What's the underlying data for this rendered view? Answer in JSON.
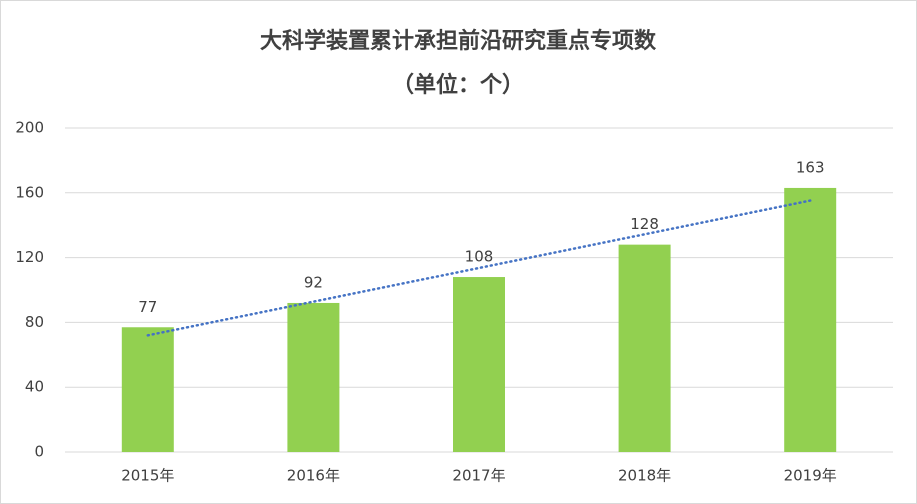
{
  "chart_data": {
    "type": "bar",
    "title": "大科学装置累计承担前沿研究重点专项数",
    "subtitle": "（单位：个）",
    "categories": [
      "2015年",
      "2016年",
      "2017年",
      "2018年",
      "2019年"
    ],
    "values": [
      77,
      92,
      108,
      128,
      163
    ],
    "color": "#92d050",
    "ylim": [
      0,
      200
    ],
    "yticks": [
      0,
      40,
      80,
      120,
      160,
      200
    ],
    "grid": true,
    "trendline": "linear",
    "trendline_color": "#4472c4"
  }
}
